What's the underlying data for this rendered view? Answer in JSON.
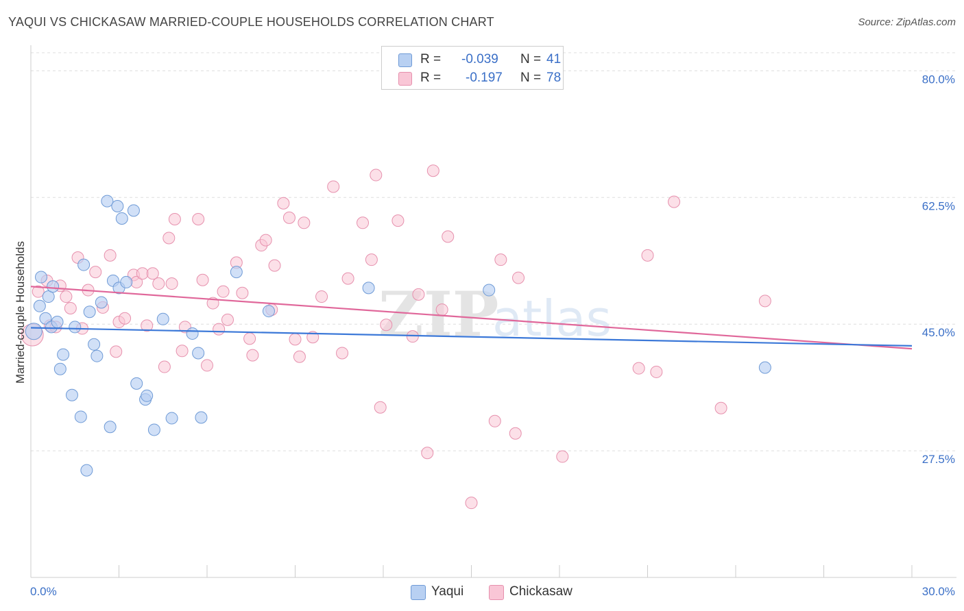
{
  "title": "YAQUI VS CHICKASAW MARRIED-COUPLE HOUSEHOLDS CORRELATION CHART",
  "source": "Source: ZipAtlas.com",
  "legend": {
    "row1": {
      "r_label": "R =",
      "r_value": "-0.039",
      "n_label": "N =",
      "n_value": "41"
    },
    "row2": {
      "r_label": "R =",
      "r_value": "-0.197",
      "n_label": "N =",
      "n_value": "78"
    }
  },
  "bottom_legend": {
    "yaqui": "Yaqui",
    "chickasaw": "Chickasaw"
  },
  "watermark": {
    "zip": "ZIP",
    "atlas": "atlas"
  },
  "colors": {
    "yaqui_fill": "#b8d0f2",
    "yaqui_stroke": "#6e9ad6",
    "yaqui_line": "#3b78d8",
    "chickasaw_fill": "#f9c6d6",
    "chickasaw_stroke": "#e690ad",
    "chickasaw_line": "#e0679a",
    "axis_label": "#3a6fc7",
    "grid": "#dddddd"
  },
  "chart_data": {
    "type": "scatter",
    "title": "YAQUI VS CHICKASAW MARRIED-COUPLE HOUSEHOLDS CORRELATION CHART",
    "xlabel": "",
    "ylabel": "Married-couple Households",
    "xlim": [
      0,
      30
    ],
    "ylim": [
      10,
      82.5
    ],
    "x_tick_labels": [
      "0.0%",
      "30.0%"
    ],
    "y_ticks": [
      27.5,
      45.0,
      62.5,
      80.0
    ],
    "y_tick_labels": [
      "27.5%",
      "45.0%",
      "62.5%",
      "80.0%"
    ],
    "grid": true,
    "legend_position": "top-center",
    "series": [
      {
        "name": "Yaqui",
        "r": -0.039,
        "n": 41,
        "trend": [
          [
            0,
            44.5
          ],
          [
            30,
            42.0
          ]
        ],
        "points": [
          [
            0.1,
            44.0
          ],
          [
            0.3,
            47.5
          ],
          [
            0.35,
            51.5
          ],
          [
            0.5,
            45.8
          ],
          [
            0.6,
            48.8
          ],
          [
            0.7,
            44.6
          ],
          [
            0.75,
            50.2
          ],
          [
            0.9,
            45.3
          ],
          [
            1.0,
            38.8
          ],
          [
            1.1,
            40.8
          ],
          [
            1.4,
            35.2
          ],
          [
            1.5,
            44.6
          ],
          [
            1.7,
            32.2
          ],
          [
            1.8,
            53.2
          ],
          [
            1.9,
            24.8
          ],
          [
            2.0,
            46.7
          ],
          [
            2.15,
            42.2
          ],
          [
            2.25,
            40.6
          ],
          [
            2.4,
            48.0
          ],
          [
            2.6,
            62.0
          ],
          [
            2.7,
            30.8
          ],
          [
            2.8,
            51.0
          ],
          [
            2.95,
            61.3
          ],
          [
            3.0,
            50.0
          ],
          [
            3.1,
            59.6
          ],
          [
            3.25,
            50.8
          ],
          [
            3.5,
            60.7
          ],
          [
            3.6,
            36.8
          ],
          [
            3.9,
            34.6
          ],
          [
            3.95,
            35.1
          ],
          [
            4.2,
            30.4
          ],
          [
            4.5,
            45.7
          ],
          [
            4.8,
            32.0
          ],
          [
            5.5,
            43.7
          ],
          [
            5.7,
            41.0
          ],
          [
            5.8,
            32.1
          ],
          [
            7.0,
            52.2
          ],
          [
            8.1,
            46.8
          ],
          [
            11.5,
            50.0
          ],
          [
            15.6,
            49.7
          ],
          [
            25.0,
            39.0
          ]
        ]
      },
      {
        "name": "Chickasaw",
        "r": -0.197,
        "n": 78,
        "trend": [
          [
            0,
            50.2
          ],
          [
            30,
            41.6
          ]
        ],
        "points": [
          [
            0.05,
            43.5
          ],
          [
            0.25,
            49.5
          ],
          [
            0.55,
            51.0
          ],
          [
            0.65,
            44.8
          ],
          [
            0.85,
            44.6
          ],
          [
            1.0,
            50.3
          ],
          [
            1.2,
            48.8
          ],
          [
            1.35,
            47.2
          ],
          [
            1.6,
            54.2
          ],
          [
            1.75,
            44.4
          ],
          [
            1.95,
            49.7
          ],
          [
            2.2,
            52.2
          ],
          [
            2.45,
            47.3
          ],
          [
            2.7,
            54.5
          ],
          [
            2.9,
            41.2
          ],
          [
            3.0,
            45.3
          ],
          [
            3.2,
            45.8
          ],
          [
            3.5,
            51.8
          ],
          [
            3.6,
            50.8
          ],
          [
            3.8,
            52.0
          ],
          [
            3.95,
            44.8
          ],
          [
            4.15,
            52.0
          ],
          [
            4.35,
            50.6
          ],
          [
            4.55,
            39.1
          ],
          [
            4.7,
            56.9
          ],
          [
            4.8,
            50.6
          ],
          [
            4.9,
            59.5
          ],
          [
            5.15,
            41.3
          ],
          [
            5.25,
            44.6
          ],
          [
            5.7,
            59.5
          ],
          [
            5.85,
            51.1
          ],
          [
            6.0,
            39.3
          ],
          [
            6.2,
            47.9
          ],
          [
            6.4,
            44.3
          ],
          [
            6.55,
            49.5
          ],
          [
            6.7,
            45.6
          ],
          [
            7.0,
            53.5
          ],
          [
            7.2,
            49.3
          ],
          [
            7.45,
            43.0
          ],
          [
            7.55,
            40.7
          ],
          [
            7.85,
            55.9
          ],
          [
            8.0,
            56.6
          ],
          [
            8.2,
            47.0
          ],
          [
            8.3,
            53.1
          ],
          [
            8.6,
            61.7
          ],
          [
            8.8,
            59.7
          ],
          [
            9.0,
            42.9
          ],
          [
            9.15,
            40.5
          ],
          [
            9.3,
            59.0
          ],
          [
            9.6,
            43.2
          ],
          [
            9.9,
            48.8
          ],
          [
            10.3,
            64.0
          ],
          [
            10.6,
            41.0
          ],
          [
            10.8,
            51.3
          ],
          [
            11.3,
            59.0
          ],
          [
            11.6,
            53.9
          ],
          [
            11.75,
            65.6
          ],
          [
            11.9,
            33.5
          ],
          [
            12.1,
            44.9
          ],
          [
            12.5,
            59.3
          ],
          [
            13.0,
            43.3
          ],
          [
            13.2,
            49.1
          ],
          [
            13.5,
            27.2
          ],
          [
            13.7,
            66.2
          ],
          [
            14.2,
            57.1
          ],
          [
            15.0,
            20.3
          ],
          [
            15.8,
            31.6
          ],
          [
            16.0,
            53.9
          ],
          [
            16.5,
            29.9
          ],
          [
            16.6,
            51.4
          ],
          [
            18.1,
            26.7
          ],
          [
            20.7,
            38.9
          ],
          [
            21.0,
            54.5
          ],
          [
            21.3,
            38.4
          ],
          [
            21.9,
            61.9
          ],
          [
            23.5,
            33.4
          ],
          [
            25.0,
            48.2
          ],
          [
            14.0,
            47.0
          ]
        ]
      }
    ]
  }
}
